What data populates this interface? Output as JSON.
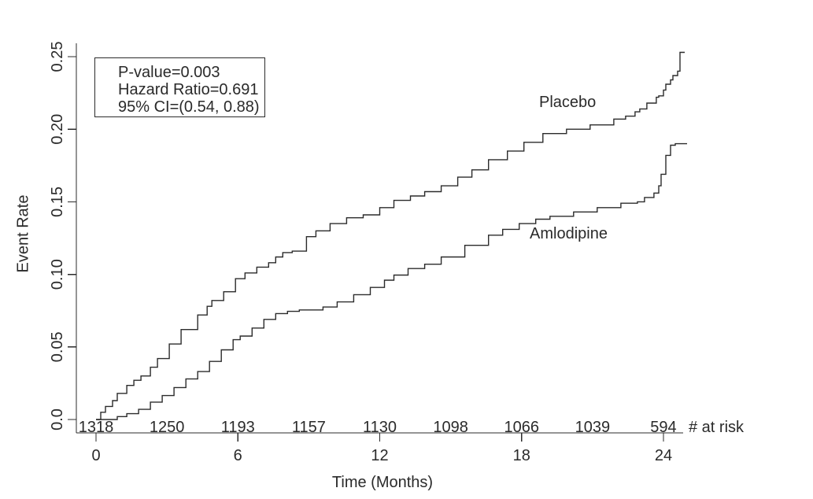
{
  "figure": {
    "background": "#ffffff",
    "text_color": "#2a2a2a",
    "line_color": "#2b2b2b"
  },
  "chart_data": {
    "type": "line",
    "subtype": "kaplan-meier-step",
    "title": "",
    "xlabel": "Time (Months)",
    "ylabel": "Event Rate",
    "xlim": [
      0,
      25.3
    ],
    "ylim": [
      0,
      0.25
    ],
    "grid": false,
    "x_ticks": [
      0,
      6,
      12,
      18,
      24
    ],
    "y_ticks": [
      0,
      0.05,
      0.1,
      0.15,
      0.2,
      0.25
    ],
    "y_tick_labels": [
      "0.0",
      "0.05",
      "0.10",
      "0.15",
      "0.20",
      "0.25"
    ],
    "legend_position": "inline-curve-labels",
    "annotation_box": {
      "lines": [
        "P-value=0.003",
        "Hazard Ratio=0.691",
        "95% CI=(0.54, 0.88)"
      ]
    },
    "series": [
      {
        "name": "Placebo",
        "points": [
          [
            0.0,
            0.0
          ],
          [
            0.2,
            0.005
          ],
          [
            0.4,
            0.009
          ],
          [
            0.7,
            0.013
          ],
          [
            0.9,
            0.018
          ],
          [
            1.3,
            0.0235
          ],
          [
            1.6,
            0.027
          ],
          [
            1.9,
            0.03
          ],
          [
            2.3,
            0.036
          ],
          [
            2.6,
            0.042
          ],
          [
            3.1,
            0.052
          ],
          [
            3.6,
            0.062
          ],
          [
            4.3,
            0.072
          ],
          [
            4.7,
            0.078
          ],
          [
            4.9,
            0.082
          ],
          [
            5.4,
            0.088
          ],
          [
            5.9,
            0.097
          ],
          [
            6.3,
            0.101
          ],
          [
            6.8,
            0.105
          ],
          [
            7.3,
            0.108
          ],
          [
            7.6,
            0.112
          ],
          [
            7.9,
            0.115
          ],
          [
            8.3,
            0.116
          ],
          [
            8.9,
            0.126
          ],
          [
            9.3,
            0.13
          ],
          [
            9.9,
            0.135
          ],
          [
            10.6,
            0.139
          ],
          [
            11.3,
            0.141
          ],
          [
            12.0,
            0.146
          ],
          [
            12.6,
            0.151
          ],
          [
            13.3,
            0.154
          ],
          [
            13.9,
            0.157
          ],
          [
            14.6,
            0.161
          ],
          [
            15.3,
            0.167
          ],
          [
            15.9,
            0.172
          ],
          [
            16.6,
            0.179
          ],
          [
            17.4,
            0.185
          ],
          [
            18.1,
            0.191
          ],
          [
            18.9,
            0.197
          ],
          [
            19.9,
            0.2
          ],
          [
            20.9,
            0.203
          ],
          [
            21.9,
            0.207
          ],
          [
            22.4,
            0.209
          ],
          [
            22.8,
            0.212
          ],
          [
            23.0,
            0.214
          ],
          [
            23.3,
            0.218
          ],
          [
            23.7,
            0.222
          ],
          [
            23.8,
            0.223
          ],
          [
            24.0,
            0.227
          ],
          [
            24.1,
            0.231
          ],
          [
            24.3,
            0.234
          ],
          [
            24.4,
            0.237
          ],
          [
            24.6,
            0.24
          ],
          [
            24.7,
            0.253
          ],
          [
            24.9,
            0.253
          ]
        ]
      },
      {
        "name": "Amlodipine",
        "points": [
          [
            0.0,
            0.0
          ],
          [
            0.9,
            0.002
          ],
          [
            1.3,
            0.004
          ],
          [
            1.8,
            0.007
          ],
          [
            2.3,
            0.012
          ],
          [
            2.8,
            0.0165
          ],
          [
            3.3,
            0.022
          ],
          [
            3.8,
            0.028
          ],
          [
            4.3,
            0.033
          ],
          [
            4.8,
            0.04
          ],
          [
            5.3,
            0.048
          ],
          [
            5.8,
            0.055
          ],
          [
            6.1,
            0.0575
          ],
          [
            6.6,
            0.063
          ],
          [
            7.1,
            0.069
          ],
          [
            7.6,
            0.073
          ],
          [
            8.1,
            0.0745
          ],
          [
            8.6,
            0.0755
          ],
          [
            9.6,
            0.0775
          ],
          [
            10.2,
            0.081
          ],
          [
            10.9,
            0.086
          ],
          [
            11.6,
            0.091
          ],
          [
            12.2,
            0.096
          ],
          [
            12.6,
            0.0995
          ],
          [
            13.2,
            0.104
          ],
          [
            13.9,
            0.107
          ],
          [
            14.6,
            0.112
          ],
          [
            15.6,
            0.12
          ],
          [
            16.6,
            0.127
          ],
          [
            17.2,
            0.131
          ],
          [
            17.9,
            0.135
          ],
          [
            18.6,
            0.138
          ],
          [
            19.2,
            0.14
          ],
          [
            20.2,
            0.143
          ],
          [
            21.2,
            0.146
          ],
          [
            22.2,
            0.149
          ],
          [
            22.9,
            0.15
          ],
          [
            23.2,
            0.153
          ],
          [
            23.6,
            0.156
          ],
          [
            23.8,
            0.161
          ],
          [
            23.9,
            0.169
          ],
          [
            24.1,
            0.182
          ],
          [
            24.3,
            0.189
          ],
          [
            24.5,
            0.19
          ],
          [
            25.0,
            0.19
          ]
        ]
      }
    ],
    "at_risk": {
      "label": "# at risk",
      "times": [
        0,
        3,
        6,
        9,
        12,
        15,
        18,
        21,
        24
      ],
      "values": [
        "1318",
        "1250",
        "1193",
        "1157",
        "1130",
        "1098",
        "1066",
        "1039",
        "594"
      ]
    }
  }
}
